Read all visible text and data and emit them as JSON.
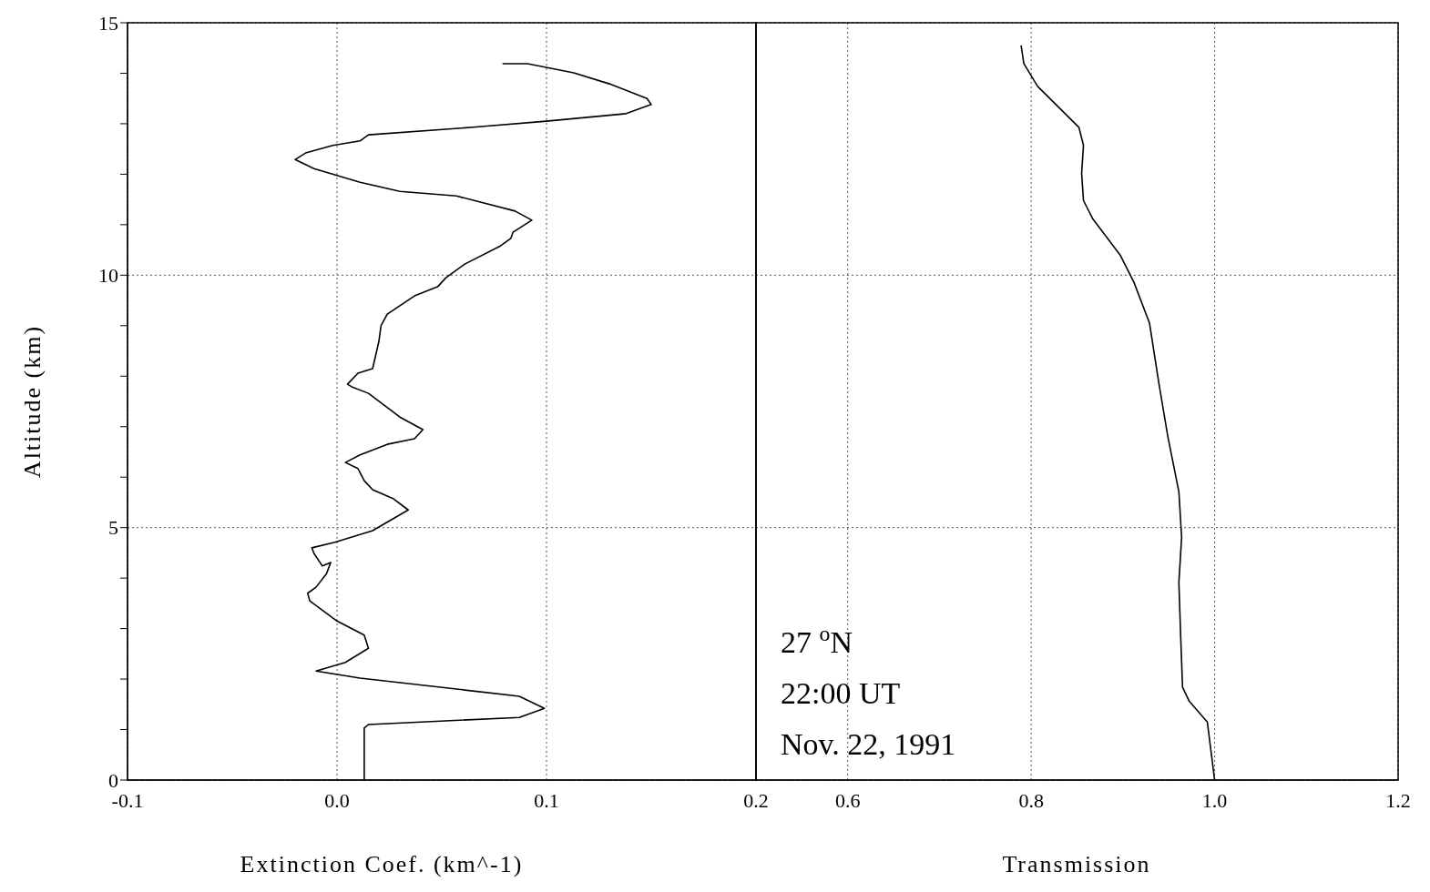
{
  "chart_data": [
    {
      "type": "line",
      "xlabel": "Extinction Coef. (km^-1)",
      "ylabel": "Altitude (km)",
      "xlim": [
        -0.1,
        0.2
      ],
      "xticks": [
        {
          "value": -0.1,
          "label": "-0.1"
        },
        {
          "value": 0,
          "label": "0.0"
        },
        0.1,
        0.2
      ],
      "ylim": [
        0,
        15
      ],
      "yticks": [
        0,
        {
          "value": 1,
          "label": null
        },
        {
          "value": 2,
          "label": null
        },
        {
          "value": 3,
          "label": null
        },
        {
          "value": 4,
          "label": null
        },
        5,
        {
          "value": 6,
          "label": null
        },
        {
          "value": 7,
          "label": null
        },
        {
          "value": 8,
          "label": null
        },
        {
          "value": 9,
          "label": null
        },
        10,
        {
          "value": 11,
          "label": null
        },
        {
          "value": 12,
          "label": null
        },
        {
          "value": 13,
          "label": null
        },
        {
          "value": 14,
          "label": null
        },
        15
      ],
      "grid": true,
      "marker": "none",
      "line_style": "solid",
      "series": [
        {
          "color": "#000000",
          "x": [
            0.013,
            0.013,
            0.015,
            0.087,
            0.099,
            0.087,
            0.011,
            -0.01,
            0.004,
            0.015,
            0.013,
            0,
            -0.013,
            -0.014,
            -0.01,
            -0.005,
            -0.003,
            -0.007,
            -0.011,
            -0.012,
            -0.001,
            0.017,
            0.034,
            0.027,
            0.017,
            0.013,
            0.01,
            0.004,
            0.011,
            0.024,
            0.037,
            0.041,
            0.03,
            0.015,
            0.007,
            0.005,
            0.01,
            0.017,
            0.018,
            0.02,
            0.021,
            0.024,
            0.037,
            0.048,
            0.052,
            0.061,
            0.078,
            0.083,
            0.084,
            0.093,
            0.085,
            0.057,
            0.03,
            0.011,
            -0.011,
            -0.02,
            -0.015,
            -0.002,
            0.011,
            0.015,
            0.065,
            0.1,
            0.138,
            0.15,
            0.148,
            0.13,
            0.113,
            0.091,
            0.079
          ],
          "values": [
            0,
            1.03,
            1.1,
            1.24,
            1.42,
            1.66,
            2.02,
            2.16,
            2.33,
            2.61,
            2.87,
            3.15,
            3.55,
            3.7,
            3.82,
            4.09,
            4.31,
            4.24,
            4.49,
            4.6,
            4.71,
            4.94,
            5.35,
            5.57,
            5.75,
            5.93,
            6.17,
            6.29,
            6.44,
            6.65,
            6.76,
            6.94,
            7.19,
            7.66,
            7.79,
            7.84,
            8.06,
            8.15,
            8.33,
            8.69,
            9.0,
            9.23,
            9.59,
            9.77,
            9.95,
            10.22,
            10.58,
            10.73,
            10.85,
            11.09,
            11.27,
            11.57,
            11.66,
            11.84,
            12.11,
            12.29,
            12.42,
            12.57,
            12.66,
            12.78,
            12.93,
            13.05,
            13.2,
            13.38,
            13.5,
            13.79,
            14.01,
            14.19,
            14.19
          ]
        }
      ]
    },
    {
      "type": "line",
      "xlabel": "Transmission",
      "xlim": [
        0.5,
        1.2
      ],
      "xticks": [
        0.6,
        0.8,
        {
          "value": 1.0,
          "label": "1.0"
        },
        1.2
      ],
      "ylim": [
        0,
        15
      ],
      "yticks": [
        0,
        {
          "value": 1,
          "label": null
        },
        {
          "value": 2,
          "label": null
        },
        {
          "value": 3,
          "label": null
        },
        {
          "value": 4,
          "label": null
        },
        5,
        {
          "value": 6,
          "label": null
        },
        {
          "value": 7,
          "label": null
        },
        {
          "value": 8,
          "label": null
        },
        {
          "value": 9,
          "label": null
        },
        10,
        {
          "value": 11,
          "label": null
        },
        {
          "value": 12,
          "label": null
        },
        {
          "value": 13,
          "label": null
        },
        {
          "value": 14,
          "label": null
        },
        15
      ],
      "tick_labels": "x",
      "grid": true,
      "marker": "none",
      "line_style": "solid",
      "annotations": [
        "27 $^{o}$N",
        "22:00 UT",
        "Nov. 22, 1991"
      ],
      "series": [
        {
          "color": "#000000",
          "x": [
            1.0,
            0.992,
            0.972,
            0.965,
            0.963,
            0.961,
            0.964,
            0.961,
            0.949,
            0.939,
            0.929,
            0.912,
            0.897,
            0.867,
            0.857,
            0.855,
            0.857,
            0.852,
            0.827,
            0.807,
            0.792,
            0.789
          ],
          "values": [
            0,
            1.15,
            1.57,
            1.84,
            2.83,
            3.91,
            4.81,
            5.71,
            6.8,
            7.88,
            9.05,
            9.86,
            10.4,
            11.12,
            11.48,
            12.02,
            12.57,
            12.93,
            13.38,
            13.74,
            14.19,
            14.55
          ]
        }
      ]
    }
  ]
}
